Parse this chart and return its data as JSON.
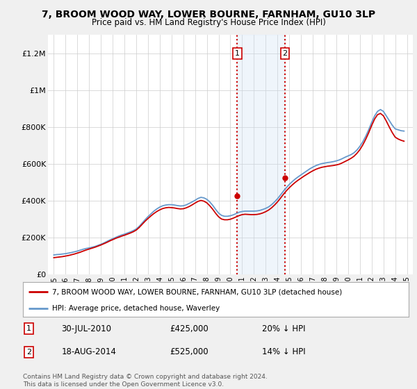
{
  "title": "7, BROOM WOOD WAY, LOWER BOURNE, FARNHAM, GU10 3LP",
  "subtitle": "Price paid vs. HM Land Registry's House Price Index (HPI)",
  "red_label": "7, BROOM WOOD WAY, LOWER BOURNE, FARNHAM, GU10 3LP (detached house)",
  "blue_label": "HPI: Average price, detached house, Waverley",
  "transaction1_date": "30-JUL-2010",
  "transaction1_price": 425000,
  "transaction1_pct": "20% ↓ HPI",
  "transaction2_date": "18-AUG-2014",
  "transaction2_price": 525000,
  "transaction2_pct": "14% ↓ HPI",
  "footnote": "Contains HM Land Registry data © Crown copyright and database right 2024.\nThis data is licensed under the Open Government Licence v3.0.",
  "ylim": [
    0,
    1300000
  ],
  "background_color": "#f0f0f0",
  "plot_bg_color": "#ffffff",
  "red_color": "#cc0000",
  "blue_color": "#6699cc",
  "shade_color": "#cce0f5",
  "hpi_x": [
    1995.0,
    1995.25,
    1995.5,
    1995.75,
    1996.0,
    1996.25,
    1996.5,
    1996.75,
    1997.0,
    1997.25,
    1997.5,
    1997.75,
    1998.0,
    1998.25,
    1998.5,
    1998.75,
    1999.0,
    1999.25,
    1999.5,
    1999.75,
    2000.0,
    2000.25,
    2000.5,
    2000.75,
    2001.0,
    2001.25,
    2001.5,
    2001.75,
    2002.0,
    2002.25,
    2002.5,
    2002.75,
    2003.0,
    2003.25,
    2003.5,
    2003.75,
    2004.0,
    2004.25,
    2004.5,
    2004.75,
    2005.0,
    2005.25,
    2005.5,
    2005.75,
    2006.0,
    2006.25,
    2006.5,
    2006.75,
    2007.0,
    2007.25,
    2007.5,
    2007.75,
    2008.0,
    2008.25,
    2008.5,
    2008.75,
    2009.0,
    2009.25,
    2009.5,
    2009.75,
    2010.0,
    2010.25,
    2010.5,
    2010.75,
    2011.0,
    2011.25,
    2011.5,
    2011.75,
    2012.0,
    2012.25,
    2012.5,
    2012.75,
    2013.0,
    2013.25,
    2013.5,
    2013.75,
    2014.0,
    2014.25,
    2014.5,
    2014.75,
    2015.0,
    2015.25,
    2015.5,
    2015.75,
    2016.0,
    2016.25,
    2016.5,
    2016.75,
    2017.0,
    2017.25,
    2017.5,
    2017.75,
    2018.0,
    2018.25,
    2018.5,
    2018.75,
    2019.0,
    2019.25,
    2019.5,
    2019.75,
    2020.0,
    2020.25,
    2020.5,
    2020.75,
    2021.0,
    2021.25,
    2021.5,
    2021.75,
    2022.0,
    2022.25,
    2022.5,
    2022.75,
    2023.0,
    2023.25,
    2023.5,
    2023.75,
    2024.0,
    2024.25,
    2024.5,
    2024.75
  ],
  "hpi_y": [
    105000,
    107000,
    108000,
    110000,
    112000,
    115000,
    118000,
    122000,
    126000,
    131000,
    136000,
    140000,
    143000,
    147000,
    151000,
    157000,
    163000,
    170000,
    178000,
    186000,
    193000,
    200000,
    207000,
    213000,
    218000,
    224000,
    230000,
    237000,
    246000,
    260000,
    278000,
    296000,
    313000,
    328000,
    343000,
    355000,
    365000,
    372000,
    376000,
    378000,
    378000,
    376000,
    373000,
    371000,
    372000,
    377000,
    385000,
    393000,
    402000,
    412000,
    418000,
    415000,
    407000,
    393000,
    374000,
    352000,
    332000,
    320000,
    315000,
    315000,
    318000,
    323000,
    330000,
    337000,
    341000,
    343000,
    343000,
    343000,
    343000,
    344000,
    347000,
    352000,
    358000,
    366000,
    378000,
    393000,
    410000,
    430000,
    451000,
    470000,
    488000,
    503000,
    517000,
    529000,
    540000,
    551000,
    562000,
    573000,
    582000,
    590000,
    596000,
    601000,
    604000,
    607000,
    609000,
    612000,
    616000,
    621000,
    628000,
    636000,
    643000,
    650000,
    660000,
    675000,
    695000,
    720000,
    750000,
    785000,
    825000,
    860000,
    885000,
    895000,
    885000,
    860000,
    835000,
    810000,
    790000,
    785000,
    780000,
    778000
  ],
  "price_x": [
    1995.0,
    1995.25,
    1995.5,
    1995.75,
    1996.0,
    1996.25,
    1996.5,
    1996.75,
    1997.0,
    1997.25,
    1997.5,
    1997.75,
    1998.0,
    1998.25,
    1998.5,
    1998.75,
    1999.0,
    1999.25,
    1999.5,
    1999.75,
    2000.0,
    2000.25,
    2000.5,
    2000.75,
    2001.0,
    2001.25,
    2001.5,
    2001.75,
    2002.0,
    2002.25,
    2002.5,
    2002.75,
    2003.0,
    2003.25,
    2003.5,
    2003.75,
    2004.0,
    2004.25,
    2004.5,
    2004.75,
    2005.0,
    2005.25,
    2005.5,
    2005.75,
    2006.0,
    2006.25,
    2006.5,
    2006.75,
    2007.0,
    2007.25,
    2007.5,
    2007.75,
    2008.0,
    2008.25,
    2008.5,
    2008.75,
    2009.0,
    2009.25,
    2009.5,
    2009.75,
    2010.0,
    2010.25,
    2010.5,
    2010.75,
    2011.0,
    2011.25,
    2011.5,
    2011.75,
    2012.0,
    2012.25,
    2012.5,
    2012.75,
    2013.0,
    2013.25,
    2013.5,
    2013.75,
    2014.0,
    2014.25,
    2014.5,
    2014.75,
    2015.0,
    2015.25,
    2015.5,
    2015.75,
    2016.0,
    2016.25,
    2016.5,
    2016.75,
    2017.0,
    2017.25,
    2017.5,
    2017.75,
    2018.0,
    2018.25,
    2018.5,
    2018.75,
    2019.0,
    2019.25,
    2019.5,
    2019.75,
    2020.0,
    2020.25,
    2020.5,
    2020.75,
    2021.0,
    2021.25,
    2021.5,
    2021.75,
    2022.0,
    2022.25,
    2022.5,
    2022.75,
    2023.0,
    2023.25,
    2023.5,
    2023.75,
    2024.0,
    2024.25,
    2024.5,
    2024.75
  ],
  "price_y": [
    90000,
    92000,
    94000,
    96000,
    99000,
    102000,
    106000,
    110000,
    115000,
    120000,
    126000,
    132000,
    137000,
    142000,
    147000,
    153000,
    159000,
    166000,
    173000,
    181000,
    188000,
    195000,
    201000,
    207000,
    212000,
    218000,
    224000,
    231000,
    240000,
    254000,
    271000,
    288000,
    303000,
    317000,
    330000,
    341000,
    350000,
    357000,
    361000,
    363000,
    362000,
    360000,
    357000,
    355000,
    356000,
    361000,
    368000,
    377000,
    387000,
    396000,
    401000,
    397000,
    388000,
    372000,
    353000,
    331000,
    312000,
    300000,
    296000,
    296000,
    299000,
    305000,
    312000,
    319000,
    324000,
    326000,
    325000,
    324000,
    324000,
    325000,
    328000,
    333000,
    340000,
    349000,
    361000,
    376000,
    393000,
    413000,
    434000,
    453000,
    470000,
    485000,
    499000,
    511000,
    522000,
    533000,
    543000,
    553000,
    562000,
    570000,
    576000,
    581000,
    584000,
    587000,
    589000,
    591000,
    594000,
    598000,
    605000,
    613000,
    621000,
    630000,
    641000,
    657000,
    677000,
    703000,
    734000,
    769000,
    808000,
    843000,
    867000,
    874000,
    861000,
    832000,
    800000,
    770000,
    745000,
    735000,
    728000,
    723000
  ],
  "transaction1_x": 2010.58,
  "transaction2_x": 2014.63
}
